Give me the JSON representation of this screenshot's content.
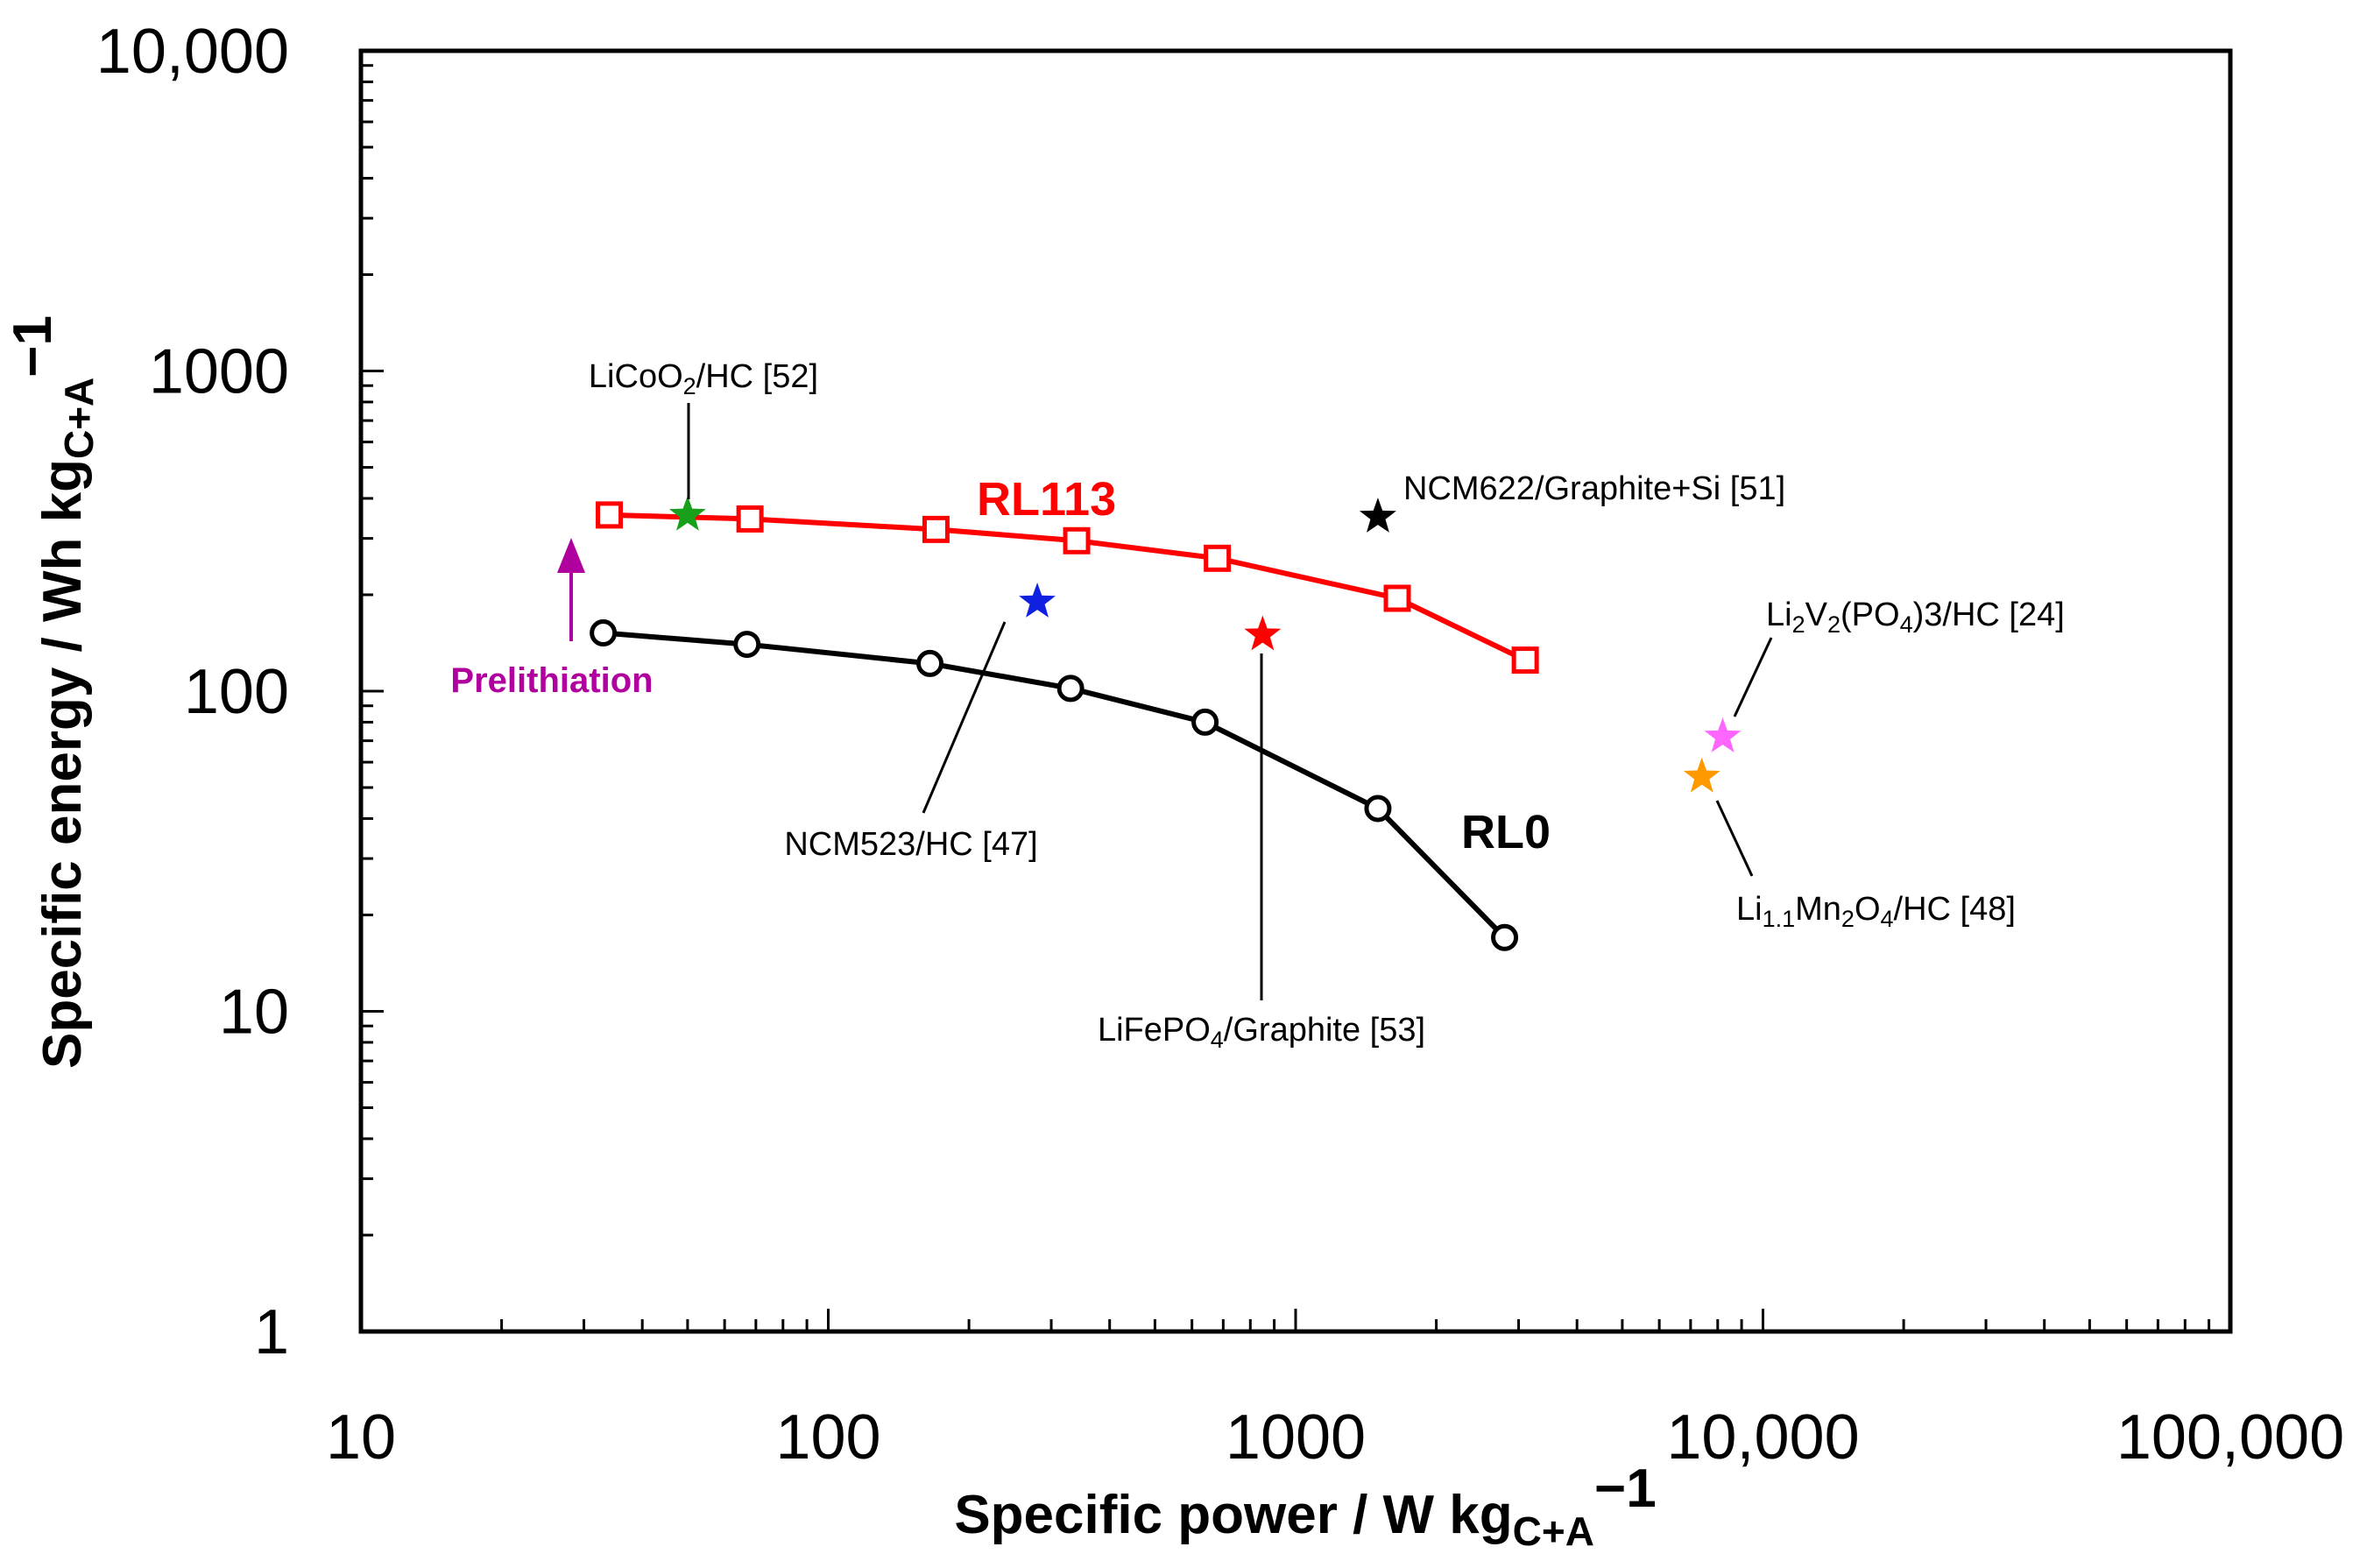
{
  "chart_data": {
    "type": "scatter",
    "xlabel": "Specific power / W kg",
    "xlabel_sub": "C+A",
    "xlabel_sup": "−1",
    "ylabel": "Specific energy / Wh kg",
    "ylabel_sub": "C+A",
    "ylabel_sup": "−1",
    "x_scale": "log",
    "y_scale": "log",
    "xlim": [
      10,
      100000
    ],
    "ylim": [
      1,
      10000
    ],
    "x_ticks": [
      {
        "value": 10,
        "label": "10"
      },
      {
        "value": 100,
        "label": "100"
      },
      {
        "value": 1000,
        "label": "1000"
      },
      {
        "value": 10000,
        "label": "10,000"
      },
      {
        "value": 100000,
        "label": "100,000"
      }
    ],
    "y_ticks": [
      {
        "value": 1,
        "label": "1"
      },
      {
        "value": 10,
        "label": "10"
      },
      {
        "value": 100,
        "label": "100"
      },
      {
        "value": 1000,
        "label": "1000"
      },
      {
        "value": 10000,
        "label": "10,000"
      }
    ],
    "grid": false,
    "series": [
      {
        "name": "RL113",
        "color": "#ff0000",
        "marker": "open-square",
        "x": [
          34,
          68,
          170,
          340,
          680,
          1650,
          3100
        ],
        "y": [
          355,
          345,
          320,
          295,
          260,
          195,
          125
        ]
      },
      {
        "name": "RL0",
        "color": "#000000",
        "marker": "open-circle",
        "x": [
          33,
          67,
          165,
          330,
          640,
          1500,
          2800
        ],
        "y": [
          152,
          140,
          122,
          102,
          80,
          43,
          17
        ]
      }
    ],
    "references": [
      {
        "label": "LiCoO",
        "sub": "2",
        "rest": "/HC [52]",
        "x": 50,
        "y": 355,
        "color": "#18a01a"
      },
      {
        "label": "NCM622/Graphite+Si [51]",
        "x": 1500,
        "y": 350,
        "color": "#000000"
      },
      {
        "label": "NCM523/HC [47]",
        "x": 280,
        "y": 190,
        "color": "#1020e0"
      },
      {
        "label": "LiFePO",
        "sub": "4",
        "rest": "/Graphite [53]",
        "x": 850,
        "y": 150,
        "color": "#ff0000"
      },
      {
        "label": "Li",
        "sub": "2",
        "mid": "V",
        "sub2": "2",
        "mid2": "(PO",
        "sub3": "4",
        "rest": ")3/HC [24]",
        "x": 8200,
        "y": 72,
        "color": "#ff66ff"
      },
      {
        "label": "Li",
        "sub": "1.1",
        "mid": "Mn",
        "sub2": "2",
        "mid2": "O",
        "sub3": "4",
        "rest": "/HC [48]",
        "x": 7400,
        "y": 54,
        "color": "#ff9900"
      }
    ],
    "annotation": {
      "text": "Prelithiation",
      "color": "#b0009e"
    }
  }
}
